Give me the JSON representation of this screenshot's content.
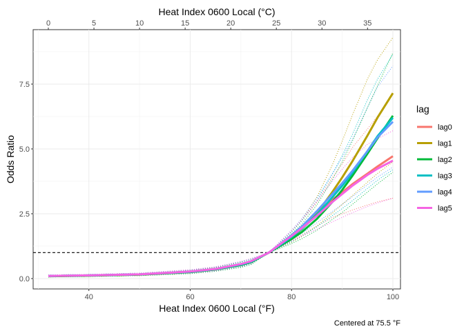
{
  "chart_data": {
    "type": "line",
    "x_top_label": "Heat Index 0600 Local (°C)",
    "x_bottom_label": "Heat Index 0600 Local (°F)",
    "ylabel": "Odds Ratio",
    "caption": "Centered at 75.5 °F",
    "xlim_f": [
      29,
      101.5
    ],
    "ylim": [
      -0.4,
      9.6
    ],
    "x_ticks_f": [
      40,
      60,
      80,
      100
    ],
    "x_ticks_c": [
      0,
      5,
      10,
      15,
      20,
      25,
      30,
      35
    ],
    "y_ticks": [
      0.0,
      2.5,
      5.0,
      7.5
    ],
    "y_tick_labels": [
      "0.0",
      "2.5",
      "5.0",
      "7.5"
    ],
    "x_tick_labels_f": [
      "40",
      "60",
      "80",
      "100"
    ],
    "x_tick_labels_c": [
      "0",
      "5",
      "10",
      "15",
      "20",
      "25",
      "30",
      "35"
    ],
    "reference_line_y": 1.0,
    "legend": {
      "title": "lag",
      "position": "right"
    },
    "grid": true,
    "x": [
      32,
      40,
      50,
      60,
      65,
      70,
      72,
      75.5,
      78,
      80,
      82,
      85,
      88,
      90,
      92,
      95,
      97,
      100
    ],
    "series": [
      {
        "name": "lag0",
        "color": "#F8766D",
        "values": [
          0.1,
          0.12,
          0.16,
          0.27,
          0.37,
          0.55,
          0.66,
          1.0,
          1.34,
          1.62,
          1.93,
          2.44,
          3.03,
          3.33,
          3.64,
          4.05,
          4.33,
          4.72
        ],
        "lower": [
          0.07,
          0.09,
          0.12,
          0.21,
          0.3,
          0.46,
          0.57,
          1.0,
          1.25,
          1.46,
          1.68,
          2.02,
          2.35,
          2.5,
          2.64,
          2.84,
          2.96,
          3.1
        ],
        "upper": [
          0.14,
          0.16,
          0.21,
          0.34,
          0.45,
          0.65,
          0.76,
          1.0,
          1.43,
          1.8,
          2.22,
          2.94,
          3.88,
          4.42,
          5.05,
          5.77,
          6.27,
          7.1
        ]
      },
      {
        "name": "lag1",
        "color": "#B79F00",
        "values": [
          0.09,
          0.11,
          0.15,
          0.25,
          0.35,
          0.53,
          0.64,
          1.0,
          1.32,
          1.58,
          1.9,
          2.52,
          3.32,
          3.9,
          4.52,
          5.52,
          6.22,
          7.15
        ],
        "lower": [
          0.06,
          0.08,
          0.11,
          0.19,
          0.28,
          0.44,
          0.55,
          1.0,
          1.22,
          1.4,
          1.62,
          2.02,
          2.52,
          2.86,
          3.2,
          3.72,
          4.06,
          4.5
        ],
        "upper": [
          0.13,
          0.15,
          0.2,
          0.33,
          0.43,
          0.64,
          0.75,
          1.0,
          1.44,
          1.8,
          2.24,
          3.14,
          4.36,
          5.3,
          6.3,
          7.7,
          8.45,
          9.3
        ]
      },
      {
        "name": "lag2",
        "color": "#00BA38",
        "values": [
          0.09,
          0.11,
          0.15,
          0.25,
          0.35,
          0.52,
          0.63,
          1.0,
          1.29,
          1.52,
          1.79,
          2.3,
          2.94,
          3.42,
          3.96,
          4.82,
          5.42,
          6.28
        ],
        "lower": [
          0.06,
          0.08,
          0.11,
          0.19,
          0.28,
          0.43,
          0.54,
          1.0,
          1.19,
          1.35,
          1.53,
          1.86,
          2.27,
          2.55,
          2.86,
          3.34,
          3.66,
          4.1
        ],
        "upper": [
          0.13,
          0.15,
          0.2,
          0.33,
          0.43,
          0.63,
          0.74,
          1.0,
          1.4,
          1.72,
          2.09,
          2.84,
          3.8,
          4.5,
          5.3,
          6.6,
          7.45,
          8.7
        ]
      },
      {
        "name": "lag3",
        "color": "#00BFC4",
        "values": [
          0.1,
          0.12,
          0.16,
          0.26,
          0.36,
          0.54,
          0.65,
          1.0,
          1.33,
          1.6,
          1.91,
          2.46,
          3.12,
          3.58,
          4.08,
          4.92,
          5.5,
          6.2
        ],
        "lower": [
          0.07,
          0.09,
          0.12,
          0.2,
          0.29,
          0.45,
          0.56,
          1.0,
          1.23,
          1.42,
          1.64,
          2.0,
          2.42,
          2.7,
          3.0,
          3.48,
          3.8,
          4.2
        ],
        "upper": [
          0.14,
          0.16,
          0.21,
          0.33,
          0.44,
          0.64,
          0.75,
          1.0,
          1.44,
          1.8,
          2.22,
          3.0,
          4.02,
          4.74,
          5.55,
          6.9,
          7.7,
          8.65
        ]
      },
      {
        "name": "lag4",
        "color": "#619CFF",
        "values": [
          0.1,
          0.12,
          0.16,
          0.27,
          0.37,
          0.56,
          0.67,
          1.0,
          1.37,
          1.67,
          2.0,
          2.6,
          3.25,
          3.68,
          4.15,
          4.92,
          5.45,
          6.05
        ],
        "lower": [
          0.07,
          0.09,
          0.12,
          0.21,
          0.3,
          0.47,
          0.58,
          1.0,
          1.27,
          1.5,
          1.74,
          2.15,
          2.58,
          2.86,
          3.16,
          3.62,
          3.92,
          4.3
        ],
        "upper": [
          0.14,
          0.16,
          0.21,
          0.34,
          0.45,
          0.66,
          0.77,
          1.0,
          1.48,
          1.86,
          2.3,
          3.1,
          4.02,
          4.66,
          5.36,
          6.6,
          7.4,
          8.2
        ]
      },
      {
        "name": "lag5",
        "color": "#F564E3",
        "values": [
          0.1,
          0.12,
          0.16,
          0.27,
          0.37,
          0.56,
          0.67,
          1.0,
          1.36,
          1.64,
          1.94,
          2.42,
          2.94,
          3.26,
          3.58,
          4.0,
          4.24,
          4.55
        ],
        "lower": [
          0.07,
          0.09,
          0.12,
          0.21,
          0.3,
          0.47,
          0.58,
          1.0,
          1.25,
          1.45,
          1.64,
          1.9,
          2.18,
          2.36,
          2.54,
          2.78,
          2.92,
          3.1
        ],
        "upper": [
          0.14,
          0.16,
          0.21,
          0.34,
          0.45,
          0.66,
          0.77,
          1.0,
          1.48,
          1.85,
          2.27,
          2.98,
          3.74,
          4.22,
          4.66,
          5.18,
          5.4,
          5.7
        ]
      }
    ]
  }
}
